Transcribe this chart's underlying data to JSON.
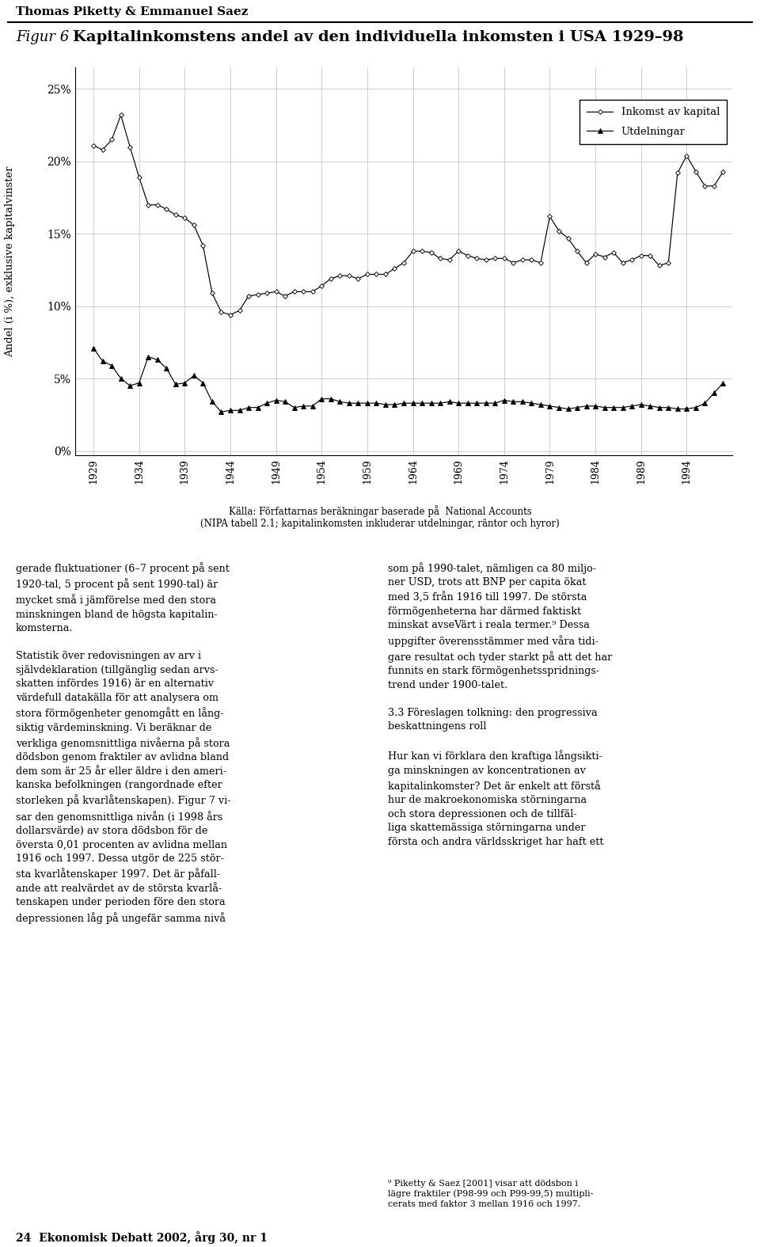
{
  "title_author": "Thomas Piketty & Emmanuel Saez",
  "title_fig_italic": "Figur 6",
  "title_main": "Kapitalinkomstens andel av den individuella inkomsten i USA 1929–98",
  "ylabel": "Andel (i %), exklusive kapitalvinster",
  "source_line1": "Källa: Författarnas beräkningar baserade på  National Accounts",
  "source_line2": "(NIPA tabell 2.1; kapitalinkomsten inkluderar utdelningar, räntor och hyror)",
  "legend_capital": "Inkomst av kapital",
  "legend_div": "Utdelningar",
  "yticks": [
    0.0,
    0.05,
    0.1,
    0.15,
    0.2,
    0.25
  ],
  "ytick_labels": [
    "0%",
    "5%",
    "10%",
    "15%",
    "20%",
    "25%"
  ],
  "xticks": [
    1929,
    1934,
    1939,
    1944,
    1949,
    1954,
    1959,
    1964,
    1969,
    1974,
    1979,
    1984,
    1989,
    1994
  ],
  "capital_years": [
    1929,
    1930,
    1931,
    1932,
    1933,
    1934,
    1935,
    1936,
    1937,
    1938,
    1939,
    1940,
    1941,
    1942,
    1943,
    1944,
    1945,
    1946,
    1947,
    1948,
    1949,
    1950,
    1951,
    1952,
    1953,
    1954,
    1955,
    1956,
    1957,
    1958,
    1959,
    1960,
    1961,
    1962,
    1963,
    1964,
    1965,
    1966,
    1967,
    1968,
    1969,
    1970,
    1971,
    1972,
    1973,
    1974,
    1975,
    1976,
    1977,
    1978,
    1979,
    1980,
    1981,
    1982,
    1983,
    1984,
    1985,
    1986,
    1987,
    1988,
    1989,
    1990,
    1991,
    1992,
    1993,
    1994,
    1995,
    1996,
    1997,
    1998
  ],
  "capital_values": [
    0.211,
    0.208,
    0.215,
    0.232,
    0.21,
    0.189,
    0.17,
    0.17,
    0.167,
    0.163,
    0.161,
    0.156,
    0.142,
    0.109,
    0.096,
    0.094,
    0.097,
    0.107,
    0.108,
    0.109,
    0.11,
    0.107,
    0.11,
    0.11,
    0.11,
    0.114,
    0.119,
    0.121,
    0.121,
    0.119,
    0.122,
    0.122,
    0.122,
    0.126,
    0.13,
    0.138,
    0.138,
    0.137,
    0.133,
    0.132,
    0.138,
    0.135,
    0.133,
    0.132,
    0.133,
    0.133,
    0.13,
    0.132,
    0.132,
    0.13,
    0.162,
    0.152,
    0.147,
    0.138,
    0.13,
    0.136,
    0.134,
    0.137,
    0.13,
    0.132,
    0.135,
    0.135,
    0.128,
    0.13,
    0.192,
    0.204,
    0.193,
    0.183,
    0.183,
    0.193
  ],
  "div_years": [
    1929,
    1930,
    1931,
    1932,
    1933,
    1934,
    1935,
    1936,
    1937,
    1938,
    1939,
    1940,
    1941,
    1942,
    1943,
    1944,
    1945,
    1946,
    1947,
    1948,
    1949,
    1950,
    1951,
    1952,
    1953,
    1954,
    1955,
    1956,
    1957,
    1958,
    1959,
    1960,
    1961,
    1962,
    1963,
    1964,
    1965,
    1966,
    1967,
    1968,
    1969,
    1970,
    1971,
    1972,
    1973,
    1974,
    1975,
    1976,
    1977,
    1978,
    1979,
    1980,
    1981,
    1982,
    1983,
    1984,
    1985,
    1986,
    1987,
    1988,
    1989,
    1990,
    1991,
    1992,
    1993,
    1994,
    1995,
    1996,
    1997,
    1998
  ],
  "div_values": [
    0.071,
    0.062,
    0.059,
    0.05,
    0.045,
    0.047,
    0.065,
    0.063,
    0.057,
    0.046,
    0.047,
    0.052,
    0.047,
    0.034,
    0.027,
    0.028,
    0.028,
    0.03,
    0.03,
    0.033,
    0.035,
    0.034,
    0.03,
    0.031,
    0.031,
    0.036,
    0.036,
    0.034,
    0.033,
    0.033,
    0.033,
    0.033,
    0.032,
    0.032,
    0.033,
    0.033,
    0.033,
    0.033,
    0.033,
    0.034,
    0.033,
    0.033,
    0.033,
    0.033,
    0.033,
    0.035,
    0.034,
    0.034,
    0.033,
    0.032,
    0.031,
    0.03,
    0.029,
    0.03,
    0.031,
    0.031,
    0.03,
    0.03,
    0.03,
    0.031,
    0.032,
    0.031,
    0.03,
    0.03,
    0.029,
    0.029,
    0.03,
    0.033,
    0.04,
    0.047
  ],
  "body_left": "gerade fluktuationer (6–7 procent på sent\n1920-tal, 5 procent på sent 1990-tal) är\nmycket små i jämförelse med den stora\nminskningen bland de högsta kapitalin-\nkomsterna.\n\nStatistik över redovisningen av arv i\nsjälvdeklaration (tillgänglig sedan arvs-\nskatten infördes 1916) är en alternativ\nvärdefull datakälla för att analysera om\nstora förmögenheter genomgått en lång-\nsiktig värdeminskning. Vi beräknar de\nverkliga genomsnittliga nivåerna på stora\ndödsbon genom fraktiler av avlidna bland\ndem som är 25 år eller äldre i den ameri-\nkanska befolkningen (rangordnade efter\nstorleken på kvarlåtenskapen). Figur 7 vi-\nsar den genomsnittliga nivån (i 1998 års\ndollarsvärde) av stora dödsbon för de\növersta 0,01 procenten av avlidna mellan\n1916 och 1997. Dessa utgör de 225 stör-\nsta kvarlåtenskaper 1997. Det är påfall-\nande att realvärdet av de största kvarlå-\ntenskapen under perioden före den stora\ndepressionen låg på ungefär samma nivå",
  "body_right": "som på 1990-talet, nämligen ca 80 miljo-\nner USD, trots att BNP per capita ökat\nmed 3,5 från 1916 till 1997. De största\nförmögenheterna har därmed faktiskt\nminskat avseVärt i reala termer.⁹ Dessa\nuppgifter överensstämmer med våra tidi-\ngare resultat och tyder starkt på att det har\nfunnits en stark förmögenhetsspridnings-\ntrend under 1900-talet.\n\n3.3 Föreslagen tolkning: den progressiva\nbeskattningens roll\n\nHur kan vi förklara den kraftiga långsikti-\nga minskningen av koncentrationen av\nkapitalinkomster? Det är enkelt att förstå\nhur de makroekonomiska störningarna\noch stora depressionen och de tillfäl-\nliga skattemässiga störningarna under\nförsta och andra världsskriget har haft ett",
  "footnote": "⁹ Piketty & Saez [2001] visar att dödsbon i\nlägre fraktiler (P98-99 och P99-99,5) multipli-\ncerats med faktor 3 mellan 1916 och 1997.",
  "footer": "24  Ekonomisk Debatt 2002, årg 30, nr 1"
}
